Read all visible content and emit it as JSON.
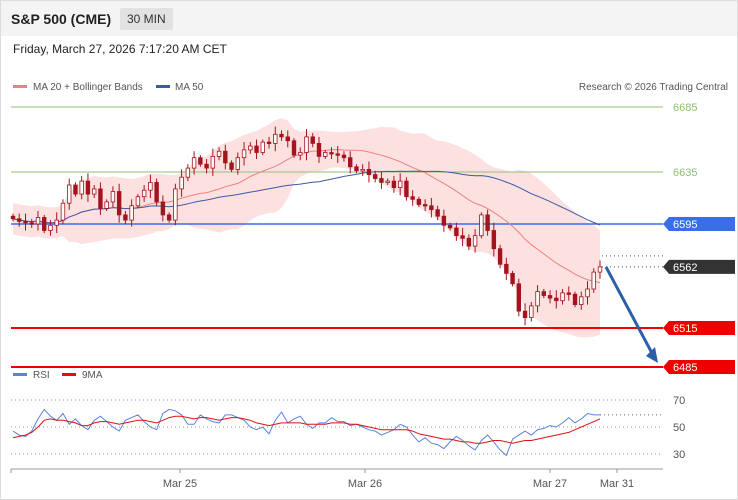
{
  "header": {
    "instrument": "S&P 500 (CME)",
    "timeframe": "30 MIN",
    "datetime": "Friday, March 27, 2026 7:17:20 AM CET"
  },
  "legend": {
    "ma20_label": "MA 20 + Bollinger Bands",
    "ma50_label": "MA 50",
    "copyright": "Research © 2026 Trading Central",
    "rsi_label": "RSI",
    "rsi_ma_label": "9MA"
  },
  "colors": {
    "ma20": "#f08080",
    "ma50": "#3b5ba5",
    "bands_fill": "#fde0e0",
    "candle": "#a4141e",
    "level_green": "#8dc26f",
    "level_blue": "#3a6ee8",
    "level_red": "#ee0000",
    "current": "#333333",
    "arrow": "#2d5ea8",
    "rsi": "#5b82e0",
    "rsi_ma": "#dd1111"
  },
  "chart_data": {
    "type": "candlestick",
    "x_labels": [
      "Mar 25",
      "Mar 26",
      "Mar 27",
      "Mar 31"
    ],
    "price_range": [
      6470,
      6700
    ],
    "levels": [
      {
        "label": "6685",
        "value": 6685,
        "color": "green"
      },
      {
        "label": "6635",
        "value": 6635,
        "color": "green"
      },
      {
        "label": "6595",
        "value": 6595,
        "color": "blue"
      },
      {
        "label": "6562",
        "value": 6562,
        "color": "current"
      },
      {
        "label": "6515",
        "value": 6515,
        "color": "red"
      },
      {
        "label": "6485",
        "value": 6485,
        "color": "red"
      }
    ],
    "forecast_arrow": {
      "from": 6562,
      "to": 6485
    },
    "close_series": [
      6599,
      6597,
      6596,
      6595,
      6600,
      6590,
      6594,
      6598,
      6611,
      6625,
      6618,
      6628,
      6618,
      6622,
      6607,
      6612,
      6620,
      6602,
      6598,
      6609,
      6616,
      6621,
      6627,
      6612,
      6602,
      6598,
      6622,
      6631,
      6638,
      6646,
      6641,
      6638,
      6647,
      6651,
      6642,
      6637,
      6646,
      6652,
      6655,
      6650,
      6658,
      6657,
      6664,
      6662,
      6659,
      6648,
      6650,
      6662,
      6657,
      6647,
      6650,
      6649,
      6648,
      6646,
      6639,
      6636,
      6637,
      6633,
      6630,
      6627,
      6628,
      6623,
      6628,
      6616,
      6614,
      6610,
      6609,
      6606,
      6601,
      6594,
      6592,
      6586,
      6584,
      6578,
      6586,
      6602,
      6590,
      6576,
      6564,
      6557,
      6549,
      6528,
      6523,
      6532,
      6543,
      6540,
      6538,
      6536,
      6542,
      6541,
      6533,
      6539,
      6545,
      6558,
      6562
    ],
    "rsi": {
      "levels": [
        70,
        50,
        30
      ],
      "range": [
        20,
        80
      ],
      "values": [
        47,
        44,
        43,
        47,
        56,
        63,
        58,
        55,
        60,
        52,
        56,
        51,
        48,
        55,
        58,
        54,
        50,
        47,
        55,
        57,
        59,
        54,
        50,
        48,
        60,
        63,
        62,
        59,
        52,
        52,
        59,
        56,
        54,
        53,
        59,
        59,
        57,
        55,
        50,
        48,
        50,
        45,
        55,
        61,
        53,
        56,
        58,
        52,
        49,
        53,
        53,
        57,
        54,
        54,
        51,
        52,
        50,
        48,
        47,
        44,
        46,
        48,
        52,
        50,
        44,
        39,
        42,
        38,
        37,
        34,
        39,
        43,
        40,
        36,
        33,
        40,
        44,
        39,
        33,
        29,
        41,
        44,
        47,
        44,
        48,
        49,
        51,
        50,
        53,
        57,
        53,
        56,
        60,
        59,
        59
      ],
      "ma9": [
        42,
        43,
        44,
        46,
        50,
        55,
        56,
        55,
        55,
        54,
        53,
        51,
        51,
        53,
        54,
        54,
        53,
        52,
        53,
        54,
        55,
        55,
        54,
        53,
        55,
        57,
        58,
        58,
        57,
        56,
        57,
        57,
        56,
        55,
        56,
        57,
        57,
        56,
        55,
        53,
        52,
        51,
        52,
        53,
        53,
        53,
        53,
        52,
        52,
        52,
        52,
        53,
        53,
        53,
        52,
        52,
        51,
        50,
        49,
        48,
        48,
        48,
        48,
        48,
        47,
        45,
        44,
        43,
        42,
        41,
        41,
        40,
        39,
        39,
        38,
        38,
        39,
        40,
        40,
        39,
        38,
        39,
        40,
        40,
        41,
        42,
        43,
        44,
        45,
        46,
        48,
        50,
        52,
        54,
        56
      ]
    }
  }
}
